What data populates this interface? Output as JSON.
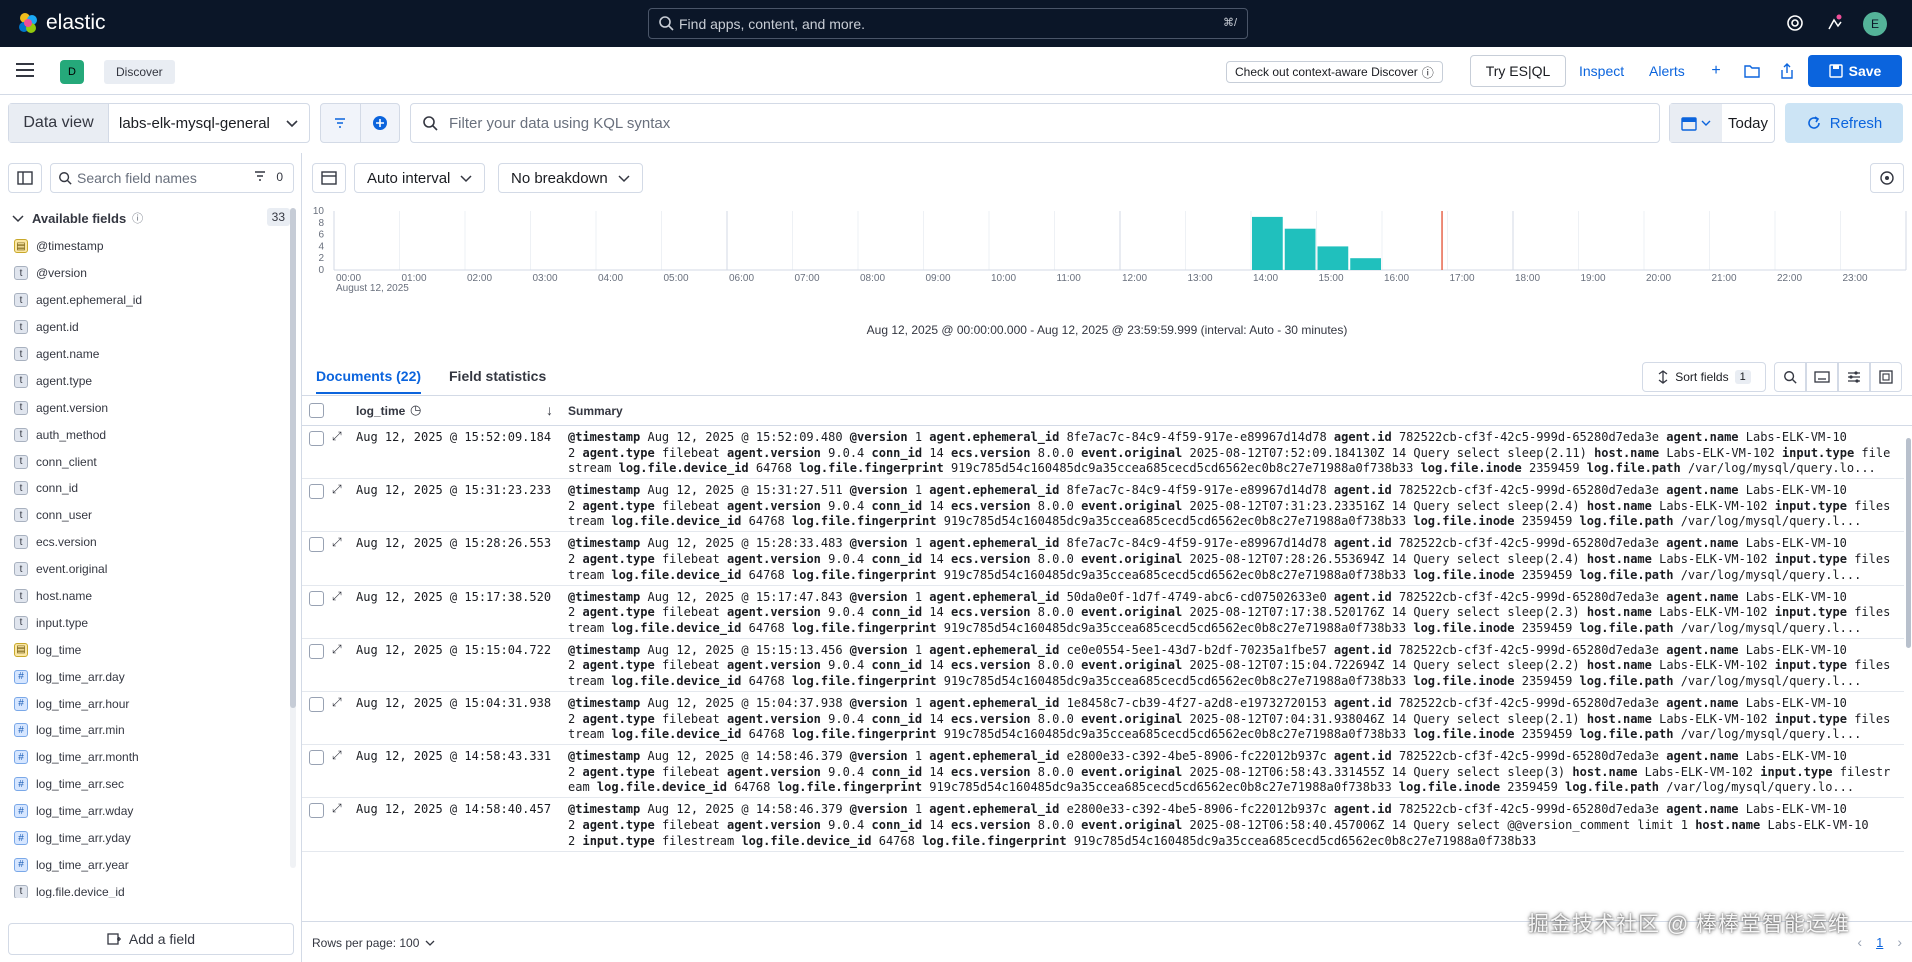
{
  "topbar": {
    "brand": "elastic",
    "search_placeholder": "Find apps, content, and more.",
    "search_shortcut": "⌘/",
    "avatar_initial": "E"
  },
  "appbar": {
    "space_initial": "D",
    "breadcrumb": "Discover",
    "context_aware": "Check out context-aware Discover",
    "try_esql": "Try ES|QL",
    "inspect": "Inspect",
    "alerts": "Alerts",
    "save": "Save"
  },
  "query": {
    "data_view_label": "Data view",
    "data_view_value": "labs-elk-mysql-general",
    "kql_placeholder": "Filter your data using KQL syntax",
    "date_label": "Today",
    "refresh": "Refresh"
  },
  "sidebar": {
    "search_placeholder": "Search field names",
    "filter_count": "0",
    "available_label": "Available fields",
    "available_count": "33",
    "fields": [
      {
        "name": "@timestamp",
        "type": "date"
      },
      {
        "name": "@version",
        "type": "keyword"
      },
      {
        "name": "agent.ephemeral_id",
        "type": "keyword"
      },
      {
        "name": "agent.id",
        "type": "keyword"
      },
      {
        "name": "agent.name",
        "type": "keyword"
      },
      {
        "name": "agent.type",
        "type": "keyword"
      },
      {
        "name": "agent.version",
        "type": "keyword"
      },
      {
        "name": "auth_method",
        "type": "keyword"
      },
      {
        "name": "conn_client",
        "type": "keyword"
      },
      {
        "name": "conn_id",
        "type": "keyword"
      },
      {
        "name": "conn_user",
        "type": "keyword"
      },
      {
        "name": "ecs.version",
        "type": "keyword"
      },
      {
        "name": "event.original",
        "type": "keyword"
      },
      {
        "name": "host.name",
        "type": "keyword"
      },
      {
        "name": "input.type",
        "type": "keyword"
      },
      {
        "name": "log_time",
        "type": "date"
      },
      {
        "name": "log_time_arr.day",
        "type": "number"
      },
      {
        "name": "log_time_arr.hour",
        "type": "number"
      },
      {
        "name": "log_time_arr.min",
        "type": "number"
      },
      {
        "name": "log_time_arr.month",
        "type": "number"
      },
      {
        "name": "log_time_arr.sec",
        "type": "number"
      },
      {
        "name": "log_time_arr.wday",
        "type": "number"
      },
      {
        "name": "log_time_arr.yday",
        "type": "number"
      },
      {
        "name": "log_time_arr.year",
        "type": "number"
      },
      {
        "name": "log.file.device_id",
        "type": "keyword"
      }
    ],
    "add_field": "Add a field"
  },
  "toolbar": {
    "interval": "Auto interval",
    "breakdown": "No breakdown"
  },
  "chart_data": {
    "type": "bar",
    "x_ticks": [
      "00:00",
      "01:00",
      "02:00",
      "03:00",
      "04:00",
      "05:00",
      "06:00",
      "07:00",
      "08:00",
      "09:00",
      "10:00",
      "11:00",
      "12:00",
      "13:00",
      "14:00",
      "15:00",
      "16:00",
      "17:00",
      "18:00",
      "19:00",
      "20:00",
      "21:00",
      "22:00",
      "23:00"
    ],
    "x_sublabel": "August 12, 2025",
    "y_ticks": [
      "0",
      "2",
      "4",
      "6",
      "8",
      "10"
    ],
    "ylim": [
      0,
      10
    ],
    "bars": [
      {
        "x": "14:00",
        "value": 9
      },
      {
        "x": "14:30",
        "value": 7
      },
      {
        "x": "15:00",
        "value": 4
      },
      {
        "x": "15:30",
        "value": 2
      }
    ],
    "now_marker": "16:55",
    "color": "#20c0bd",
    "marker_color": "#e7664c"
  },
  "time_range": "Aug 12, 2025 @ 00:00:00.000 - Aug 12, 2025 @ 23:59:59.999 (interval: Auto - 30 minutes)",
  "tabs": {
    "documents": "Documents (22)",
    "field_stats": "Field statistics"
  },
  "grid": {
    "sort_fields": "Sort fields",
    "sort_count": "1",
    "col_time": "log_time",
    "col_summary": "Summary",
    "rows": [
      {
        "ts": "Aug 12, 2025 @ 15:52:09.184",
        "lines": [
          [
            [
              "@timestamp",
              "Aug 12, 2025 @ 15:52:09.480"
            ],
            [
              "@version",
              "1"
            ],
            [
              "agent.ephemeral_id",
              "8fe7ac7c-84c9-4f59-917e-e89967d14d78"
            ],
            [
              "agent.id",
              "782522cb-cf3f-42c5-999d-65280d7eda3e"
            ],
            [
              "agent.name",
              "Labs-ELK-VM-10"
            ]
          ],
          [
            [
              "",
              "2"
            ],
            [
              "agent.type",
              "filebeat"
            ],
            [
              "agent.version",
              "9.0.4"
            ],
            [
              "conn_id",
              "14"
            ],
            [
              "ecs.version",
              "8.0.0"
            ],
            [
              "event.original",
              "2025-08-12T07:52:09.184130Z 14 Query select sleep(2.11)"
            ],
            [
              "host.name",
              "Labs-ELK-VM-102"
            ],
            [
              "input.type",
              "file"
            ]
          ],
          [
            [
              "",
              "stream"
            ],
            [
              "log.file.device_id",
              "64768"
            ],
            [
              "log.file.fingerprint",
              "919c785d54c160485dc9a35ccea685cecd5cd6562ec0b8c27e71988a0f738b33"
            ],
            [
              "log.file.inode",
              "2359459"
            ],
            [
              "log.file.path",
              "/var/log/mysql/query.lo..."
            ]
          ]
        ]
      },
      {
        "ts": "Aug 12, 2025 @ 15:31:23.233",
        "lines": [
          [
            [
              "@timestamp",
              "Aug 12, 2025 @ 15:31:27.511"
            ],
            [
              "@version",
              "1"
            ],
            [
              "agent.ephemeral_id",
              "8fe7ac7c-84c9-4f59-917e-e89967d14d78"
            ],
            [
              "agent.id",
              "782522cb-cf3f-42c5-999d-65280d7eda3e"
            ],
            [
              "agent.name",
              "Labs-ELK-VM-10"
            ]
          ],
          [
            [
              "",
              "2"
            ],
            [
              "agent.type",
              "filebeat"
            ],
            [
              "agent.version",
              "9.0.4"
            ],
            [
              "conn_id",
              "14"
            ],
            [
              "ecs.version",
              "8.0.0"
            ],
            [
              "event.original",
              "2025-08-12T07:31:23.233516Z 14 Query select sleep(2.4)"
            ],
            [
              "host.name",
              "Labs-ELK-VM-102"
            ],
            [
              "input.type",
              "files"
            ]
          ],
          [
            [
              "",
              "tream"
            ],
            [
              "log.file.device_id",
              "64768"
            ],
            [
              "log.file.fingerprint",
              "919c785d54c160485dc9a35ccea685cecd5cd6562ec0b8c27e71988a0f738b33"
            ],
            [
              "log.file.inode",
              "2359459"
            ],
            [
              "log.file.path",
              "/var/log/mysql/query.l..."
            ]
          ]
        ]
      },
      {
        "ts": "Aug 12, 2025 @ 15:28:26.553",
        "lines": [
          [
            [
              "@timestamp",
              "Aug 12, 2025 @ 15:28:33.483"
            ],
            [
              "@version",
              "1"
            ],
            [
              "agent.ephemeral_id",
              "8fe7ac7c-84c9-4f59-917e-e89967d14d78"
            ],
            [
              "agent.id",
              "782522cb-cf3f-42c5-999d-65280d7eda3e"
            ],
            [
              "agent.name",
              "Labs-ELK-VM-10"
            ]
          ],
          [
            [
              "",
              "2"
            ],
            [
              "agent.type",
              "filebeat"
            ],
            [
              "agent.version",
              "9.0.4"
            ],
            [
              "conn_id",
              "14"
            ],
            [
              "ecs.version",
              "8.0.0"
            ],
            [
              "event.original",
              "2025-08-12T07:28:26.553694Z 14 Query select sleep(2.4)"
            ],
            [
              "host.name",
              "Labs-ELK-VM-102"
            ],
            [
              "input.type",
              "files"
            ]
          ],
          [
            [
              "",
              "tream"
            ],
            [
              "log.file.device_id",
              "64768"
            ],
            [
              "log.file.fingerprint",
              "919c785d54c160485dc9a35ccea685cecd5cd6562ec0b8c27e71988a0f738b33"
            ],
            [
              "log.file.inode",
              "2359459"
            ],
            [
              "log.file.path",
              "/var/log/mysql/query.l..."
            ]
          ]
        ]
      },
      {
        "ts": "Aug 12, 2025 @ 15:17:38.520",
        "lines": [
          [
            [
              "@timestamp",
              "Aug 12, 2025 @ 15:17:47.843"
            ],
            [
              "@version",
              "1"
            ],
            [
              "agent.ephemeral_id",
              "50da0e0f-1d7f-4749-abc6-cd07502633e0"
            ],
            [
              "agent.id",
              "782522cb-cf3f-42c5-999d-65280d7eda3e"
            ],
            [
              "agent.name",
              "Labs-ELK-VM-10"
            ]
          ],
          [
            [
              "",
              "2"
            ],
            [
              "agent.type",
              "filebeat"
            ],
            [
              "agent.version",
              "9.0.4"
            ],
            [
              "conn_id",
              "14"
            ],
            [
              "ecs.version",
              "8.0.0"
            ],
            [
              "event.original",
              "2025-08-12T07:17:38.520176Z 14 Query select sleep(2.3)"
            ],
            [
              "host.name",
              "Labs-ELK-VM-102"
            ],
            [
              "input.type",
              "files"
            ]
          ],
          [
            [
              "",
              "tream"
            ],
            [
              "log.file.device_id",
              "64768"
            ],
            [
              "log.file.fingerprint",
              "919c785d54c160485dc9a35ccea685cecd5cd6562ec0b8c27e71988a0f738b33"
            ],
            [
              "log.file.inode",
              "2359459"
            ],
            [
              "log.file.path",
              "/var/log/mysql/query.l..."
            ]
          ]
        ]
      },
      {
        "ts": "Aug 12, 2025 @ 15:15:04.722",
        "lines": [
          [
            [
              "@timestamp",
              "Aug 12, 2025 @ 15:15:13.456"
            ],
            [
              "@version",
              "1"
            ],
            [
              "agent.ephemeral_id",
              "ce0e0554-5ee1-43d7-b2df-70235a1fbe57"
            ],
            [
              "agent.id",
              "782522cb-cf3f-42c5-999d-65280d7eda3e"
            ],
            [
              "agent.name",
              "Labs-ELK-VM-10"
            ]
          ],
          [
            [
              "",
              "2"
            ],
            [
              "agent.type",
              "filebeat"
            ],
            [
              "agent.version",
              "9.0.4"
            ],
            [
              "conn_id",
              "14"
            ],
            [
              "ecs.version",
              "8.0.0"
            ],
            [
              "event.original",
              "2025-08-12T07:15:04.722694Z 14 Query select sleep(2.2)"
            ],
            [
              "host.name",
              "Labs-ELK-VM-102"
            ],
            [
              "input.type",
              "files"
            ]
          ],
          [
            [
              "",
              "tream"
            ],
            [
              "log.file.device_id",
              "64768"
            ],
            [
              "log.file.fingerprint",
              "919c785d54c160485dc9a35ccea685cecd5cd6562ec0b8c27e71988a0f738b33"
            ],
            [
              "log.file.inode",
              "2359459"
            ],
            [
              "log.file.path",
              "/var/log/mysql/query.l..."
            ]
          ]
        ]
      },
      {
        "ts": "Aug 12, 2025 @ 15:04:31.938",
        "lines": [
          [
            [
              "@timestamp",
              "Aug 12, 2025 @ 15:04:37.938"
            ],
            [
              "@version",
              "1"
            ],
            [
              "agent.ephemeral_id",
              "1e8458c7-cb39-4f27-a2d8-e19732720153"
            ],
            [
              "agent.id",
              "782522cb-cf3f-42c5-999d-65280d7eda3e"
            ],
            [
              "agent.name",
              "Labs-ELK-VM-10"
            ]
          ],
          [
            [
              "",
              "2"
            ],
            [
              "agent.type",
              "filebeat"
            ],
            [
              "agent.version",
              "9.0.4"
            ],
            [
              "conn_id",
              "14"
            ],
            [
              "ecs.version",
              "8.0.0"
            ],
            [
              "event.original",
              "2025-08-12T07:04:31.938046Z 14 Query select sleep(2.1)"
            ],
            [
              "host.name",
              "Labs-ELK-VM-102"
            ],
            [
              "input.type",
              "files"
            ]
          ],
          [
            [
              "",
              "tream"
            ],
            [
              "log.file.device_id",
              "64768"
            ],
            [
              "log.file.fingerprint",
              "919c785d54c160485dc9a35ccea685cecd5cd6562ec0b8c27e71988a0f738b33"
            ],
            [
              "log.file.inode",
              "2359459"
            ],
            [
              "log.file.path",
              "/var/log/mysql/query.l..."
            ]
          ]
        ]
      },
      {
        "ts": "Aug 12, 2025 @ 14:58:43.331",
        "lines": [
          [
            [
              "@timestamp",
              "Aug 12, 2025 @ 14:58:46.379"
            ],
            [
              "@version",
              "1"
            ],
            [
              "agent.ephemeral_id",
              "e2800e33-c392-4be5-8906-fc22012b937c"
            ],
            [
              "agent.id",
              "782522cb-cf3f-42c5-999d-65280d7eda3e"
            ],
            [
              "agent.name",
              "Labs-ELK-VM-10"
            ]
          ],
          [
            [
              "",
              "2"
            ],
            [
              "agent.type",
              "filebeat"
            ],
            [
              "agent.version",
              "9.0.4"
            ],
            [
              "conn_id",
              "14"
            ],
            [
              "ecs.version",
              "8.0.0"
            ],
            [
              "event.original",
              "2025-08-12T06:58:43.331455Z 14 Query select sleep(3)"
            ],
            [
              "host.name",
              "Labs-ELK-VM-102"
            ],
            [
              "input.type",
              "filestr"
            ]
          ],
          [
            [
              "",
              "eam"
            ],
            [
              "log.file.device_id",
              "64768"
            ],
            [
              "log.file.fingerprint",
              "919c785d54c160485dc9a35ccea685cecd5cd6562ec0b8c27e71988a0f738b33"
            ],
            [
              "log.file.inode",
              "2359459"
            ],
            [
              "log.file.path",
              "/var/log/mysql/query.lo..."
            ]
          ]
        ]
      },
      {
        "ts": "Aug 12, 2025 @ 14:58:40.457",
        "lines": [
          [
            [
              "@timestamp",
              "Aug 12, 2025 @ 14:58:46.379"
            ],
            [
              "@version",
              "1"
            ],
            [
              "agent.ephemeral_id",
              "e2800e33-c392-4be5-8906-fc22012b937c"
            ],
            [
              "agent.id",
              "782522cb-cf3f-42c5-999d-65280d7eda3e"
            ],
            [
              "agent.name",
              "Labs-ELK-VM-10"
            ]
          ],
          [
            [
              "",
              "2"
            ],
            [
              "agent.type",
              "filebeat"
            ],
            [
              "agent.version",
              "9.0.4"
            ],
            [
              "conn_id",
              "14"
            ],
            [
              "ecs.version",
              "8.0.0"
            ],
            [
              "event.original",
              "2025-08-12T06:58:40.457006Z 14 Query select @@version_comment limit 1"
            ],
            [
              "host.name",
              "Labs-ELK-VM-10"
            ]
          ],
          [
            [
              "",
              "2"
            ],
            [
              "input.type",
              "filestream"
            ],
            [
              "log.file.device_id",
              "64768"
            ],
            [
              "log.file.fingerprint",
              "919c785d54c160485dc9a35ccea685cecd5cd6562ec0b8c27e71988a0f738b33"
            ]
          ]
        ]
      }
    ]
  },
  "footer": {
    "rows_per_page": "Rows per page: 100",
    "page": "1"
  },
  "watermark": "掘金技术社区 @ 棒棒堂智能运维"
}
